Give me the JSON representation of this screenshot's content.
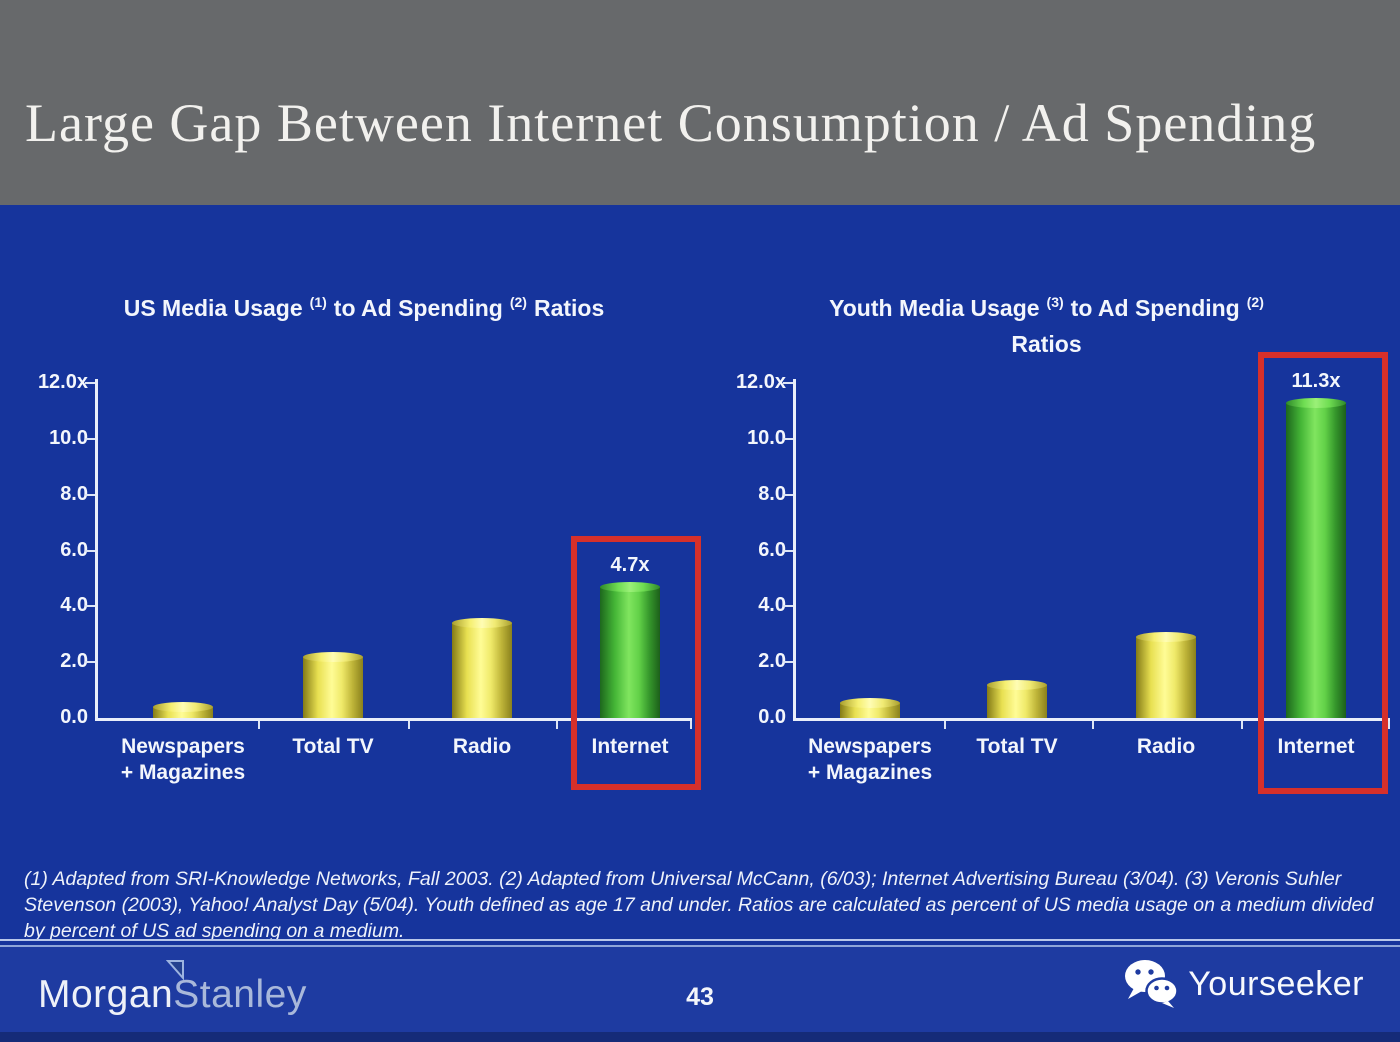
{
  "slide": {
    "title": "Large Gap Between Internet Consumption / Ad Spending",
    "page_number": "43",
    "footnote": "(1) Adapted from SRI-Knowledge Networks, Fall 2003.  (2) Adapted from Universal McCann, (6/03); Internet Advertising Bureau (3/04). (3) Veronis Suhler Stevenson (2003), Yahoo! Analyst Day (5/04).  Youth defined as age 17 and under.  Ratios are calculated as percent of US media usage on a medium divided by percent of US ad spending on a medium.",
    "brand": {
      "word1": "Morgan",
      "word2": "Stanley"
    },
    "watermark": "Yourseeker"
  },
  "colors": {
    "header_gray": "#67696b",
    "body_blue": "#16349c",
    "footer_blue": "#1e3ba1",
    "bottom_strip_blue": "#152b78",
    "highlight_red": "#d6302b",
    "bar_yellow": "#efe75f",
    "bar_green": "#5ed34a",
    "axis_white": "#e9eefa",
    "text_white": "#f3f6fc"
  },
  "chart_data": [
    {
      "type": "bar",
      "title": "US Media Usage (1) to Ad Spending (2) Ratios",
      "title_lines": [
        [
          {
            "text": "US Media Usage"
          },
          {
            "sup": "(1)"
          },
          {
            "text": "to Ad Spending"
          },
          {
            "sup": "(2)"
          },
          {
            "text": "Ratios"
          }
        ]
      ],
      "categories": [
        "Newspapers + Magazines",
        "Total TV",
        "Radio",
        "Internet"
      ],
      "category_lines": [
        [
          "Newspapers",
          "+ Magazines"
        ],
        [
          "Total TV"
        ],
        [
          "Radio"
        ],
        [
          "Internet"
        ]
      ],
      "values": [
        0.4,
        2.2,
        3.4,
        4.7
      ],
      "bar_colors": [
        "yellow",
        "yellow",
        "yellow",
        "green"
      ],
      "data_labels": [
        "",
        "",
        "",
        "4.7x"
      ],
      "y_ticks": [
        {
          "value": 12,
          "label": "12.0x"
        },
        {
          "value": 10,
          "label": "10.0"
        },
        {
          "value": 8,
          "label": "8.0"
        },
        {
          "value": 6,
          "label": "6.0"
        },
        {
          "value": 4,
          "label": "4.0"
        },
        {
          "value": 2,
          "label": "2.0"
        },
        {
          "value": 0,
          "label": "0.0"
        }
      ],
      "ylim": [
        0,
        12
      ],
      "grid": false,
      "legend": false,
      "highlight": {
        "category": "Internet",
        "color": "#d6302b"
      }
    },
    {
      "type": "bar",
      "title": "Youth Media Usage (3) to Ad Spending (2) Ratios",
      "title_lines": [
        [
          {
            "text": "Youth Media Usage"
          },
          {
            "sup": "(3)"
          },
          {
            "text": "to Ad Spending"
          },
          {
            "sup": "(2)"
          }
        ],
        [
          {
            "text": "Ratios"
          }
        ]
      ],
      "categories": [
        "Newspapers + Magazines",
        "Total TV",
        "Radio",
        "Internet"
      ],
      "category_lines": [
        [
          "Newspapers",
          "+ Magazines"
        ],
        [
          "Total TV"
        ],
        [
          "Radio"
        ],
        [
          "Internet"
        ]
      ],
      "values": [
        0.55,
        1.2,
        2.9,
        11.3
      ],
      "bar_colors": [
        "yellow",
        "yellow",
        "yellow",
        "green"
      ],
      "data_labels": [
        "",
        "",
        "",
        "11.3x"
      ],
      "y_ticks": [
        {
          "value": 12,
          "label": "12.0x"
        },
        {
          "value": 10,
          "label": "10.0"
        },
        {
          "value": 8,
          "label": "8.0"
        },
        {
          "value": 6,
          "label": "6.0"
        },
        {
          "value": 4,
          "label": "4.0"
        },
        {
          "value": 2,
          "label": "2.0"
        },
        {
          "value": 0,
          "label": "0.0"
        }
      ],
      "ylim": [
        0,
        12
      ],
      "grid": false,
      "legend": false,
      "highlight": {
        "category": "Internet",
        "color": "#d6302b"
      }
    }
  ]
}
